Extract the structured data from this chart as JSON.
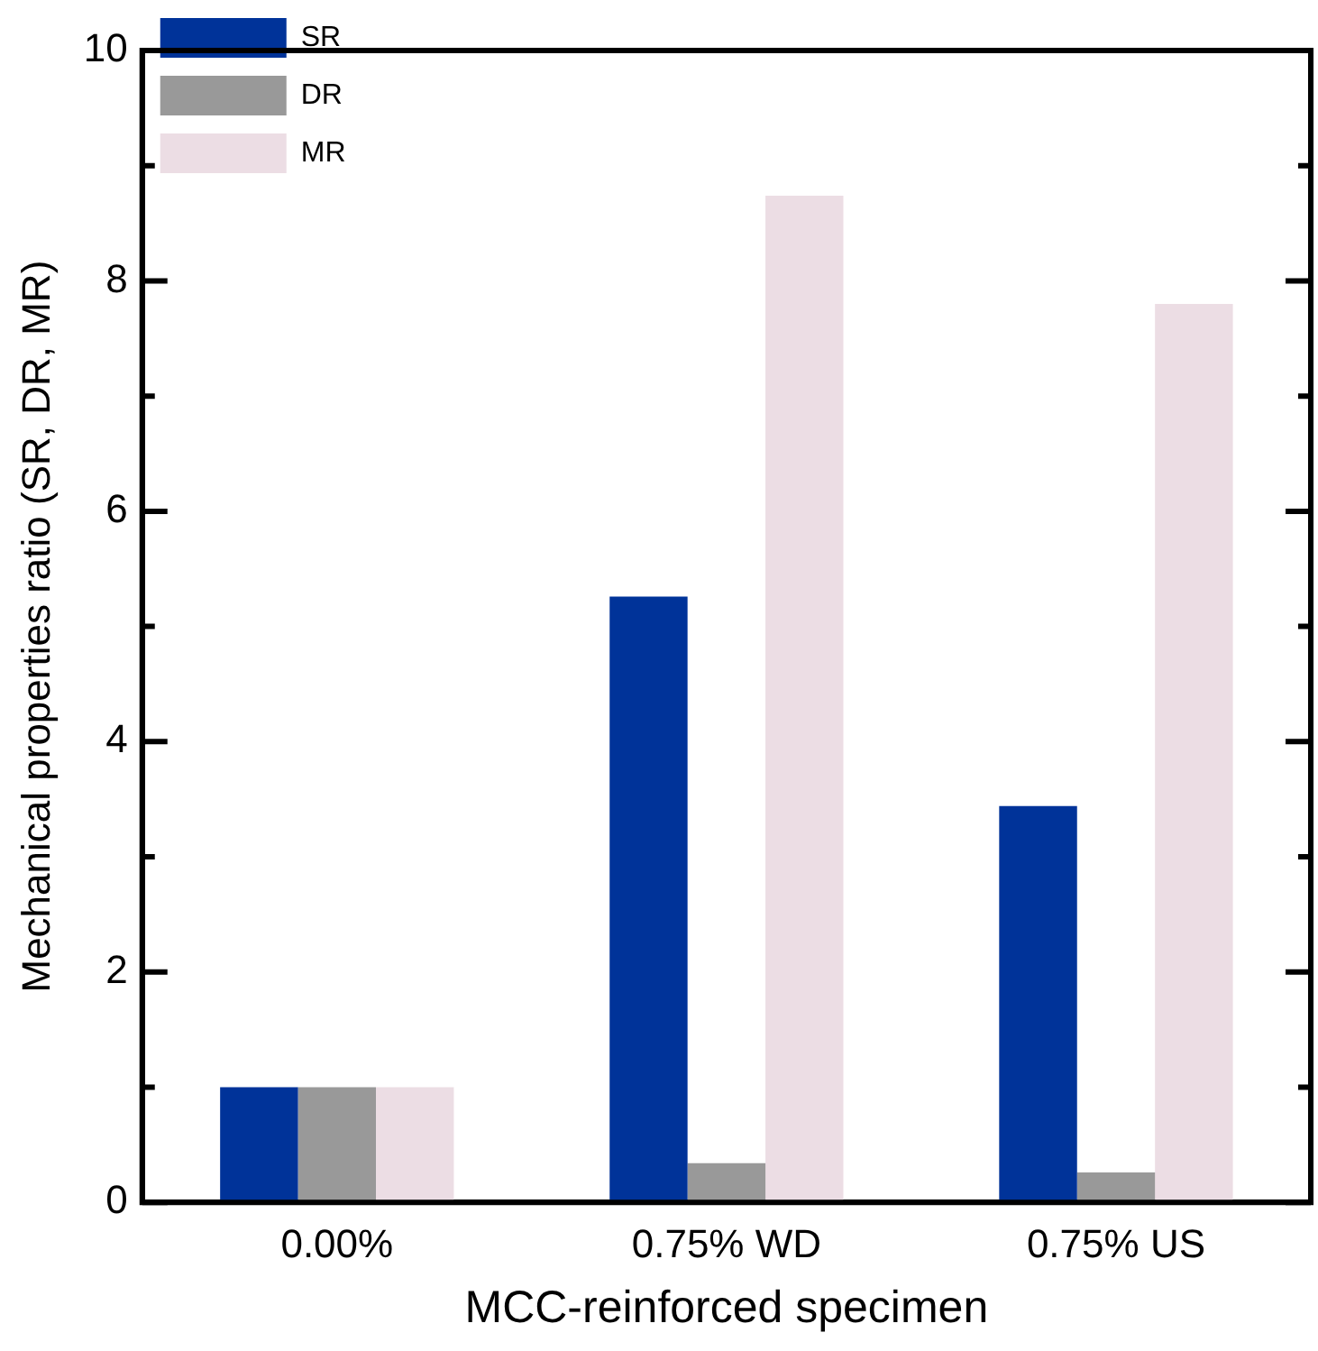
{
  "chart_data": {
    "type": "bar",
    "xlabel": "MCC-reinforced specimen",
    "ylabel": "Mechanical properties ratio (SR, DR, MR)",
    "categories": [
      "0.00%",
      "0.75% WD",
      "0.75% US"
    ],
    "series": [
      {
        "name": "SR",
        "color": "#003399",
        "values": [
          1.0,
          5.26,
          3.44
        ]
      },
      {
        "name": "DR",
        "color": "#999999",
        "values": [
          1.0,
          0.34,
          0.26
        ]
      },
      {
        "name": "MR",
        "color": "#ecdde4",
        "values": [
          1.0,
          8.74,
          7.8
        ]
      }
    ],
    "ylim": [
      0,
      10
    ],
    "yticks": [
      0,
      {
        "value": 1,
        "label": null
      },
      2,
      {
        "value": 3,
        "label": null
      },
      4,
      {
        "value": 5,
        "label": null
      },
      6,
      {
        "value": 7,
        "label": null
      },
      8,
      {
        "value": 9,
        "label": null
      },
      10
    ],
    "grid": false,
    "legend": "top left"
  }
}
